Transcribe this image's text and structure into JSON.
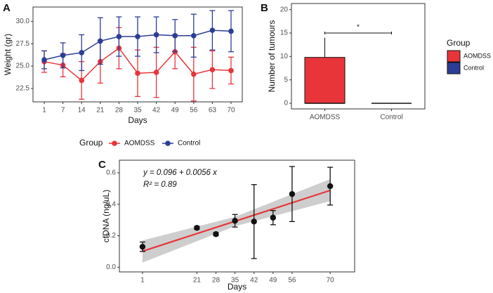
{
  "chart_data": [
    {
      "type": "line",
      "panel_label": "A",
      "x_label": "Days",
      "y_label": "Weight (gr)",
      "categories": [
        "1",
        "7",
        "14",
        "21",
        "28",
        "35",
        "42",
        "49",
        "56",
        "63",
        "70"
      ],
      "ylim": [
        21.0,
        31.6
      ],
      "yticks": [
        {
          "value": 22.5,
          "label": "22.5"
        },
        {
          "value": 25,
          "label": "25.0"
        },
        {
          "value": 27.5,
          "label": "27.5"
        },
        {
          "value": 30,
          "label": "30.0"
        }
      ],
      "legend_title": "Group",
      "series": [
        {
          "name": "AOMDSS",
          "color": "#e8353a",
          "values": [
            25.5,
            25.1,
            23.4,
            25.5,
            27.0,
            24.2,
            24.3,
            26.6,
            24.1,
            24.6,
            24.5
          ],
          "errors": [
            1.2,
            1.3,
            2.1,
            2.4,
            2.3,
            2.6,
            2.8,
            1.9,
            3.0,
            2.1,
            1.5
          ]
        },
        {
          "name": "Control",
          "color": "#2b3d96",
          "values": [
            25.7,
            26.2,
            26.5,
            27.8,
            28.3,
            28.3,
            28.5,
            28.4,
            28.4,
            29.0,
            28.9
          ],
          "errors": [
            1.0,
            1.4,
            2.0,
            2.6,
            2.2,
            2.2,
            2.0,
            1.8,
            2.4,
            2.2,
            2.3
          ]
        }
      ]
    },
    {
      "type": "box",
      "panel_label": "B",
      "y_label": "Number of tumours",
      "categories": [
        "AOMDSS",
        "Control"
      ],
      "colors": [
        "#e8353a",
        "#2b3d96"
      ],
      "boxes": [
        {
          "min": 0,
          "q1": 0,
          "median": 0,
          "q3": 9.8,
          "max": 14
        },
        {
          "min": 0,
          "q1": 0,
          "median": 0,
          "q3": 0,
          "max": 0
        }
      ],
      "ylim": [
        -1.2,
        21.3
      ],
      "yticks": [
        0,
        5,
        10,
        15,
        20
      ],
      "legend_title": "Group",
      "significance": "*"
    },
    {
      "type": "scatter",
      "panel_label": "C",
      "x_label": "Days",
      "y_label": "cfDNA (ng/uL)",
      "x": [
        1,
        21,
        28,
        35,
        42,
        49,
        56,
        70
      ],
      "values": [
        0.13,
        0.25,
        0.21,
        0.295,
        0.29,
        0.315,
        0.465,
        0.515
      ],
      "errors": [
        0.03,
        0.01,
        0.01,
        0.04,
        0.235,
        0.045,
        0.175,
        0.12
      ],
      "xlim": [
        -7.5,
        79
      ],
      "xticks": [
        1,
        21,
        28,
        35,
        42,
        49,
        56,
        70
      ],
      "ylim": [
        -0.03,
        0.68
      ],
      "yticks": [
        {
          "value": 0,
          "label": "0.0"
        },
        {
          "value": 0.2,
          "label": "0.2"
        },
        {
          "value": 0.4,
          "label": "0.4"
        },
        {
          "value": 0.6,
          "label": "0.6"
        }
      ],
      "fit": {
        "intercept": 0.096,
        "slope": 0.0056,
        "color": "#e8353a"
      },
      "band": {
        "x": [
          1,
          35,
          70
        ],
        "lower": [
          0.03,
          0.26,
          0.42
        ],
        "upper": [
          0.17,
          0.32,
          0.56
        ]
      },
      "equation": "y = 0.096 + 0.0056 x",
      "r2": "R² = 0.89"
    }
  ]
}
